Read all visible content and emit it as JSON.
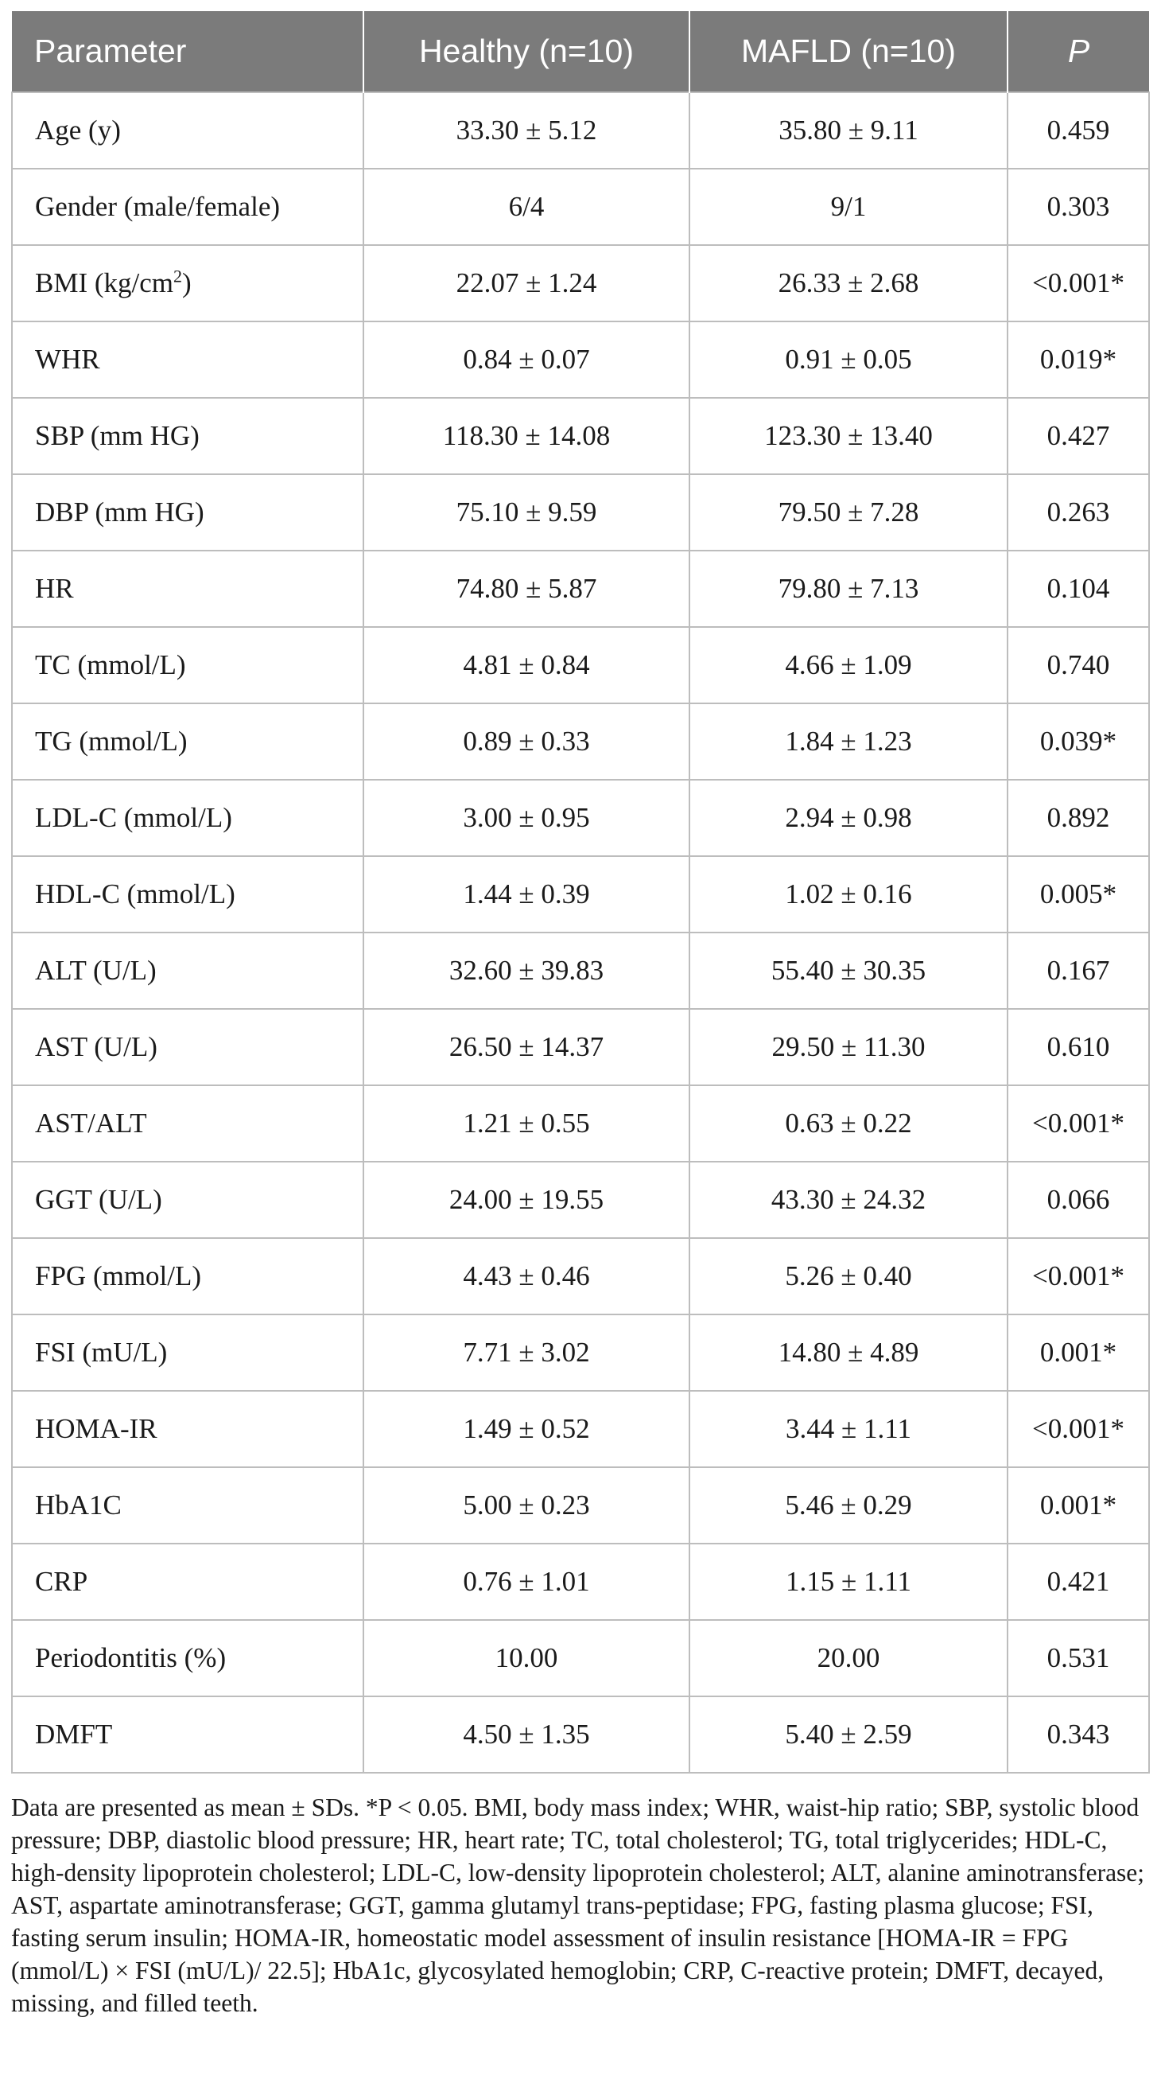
{
  "table": {
    "headers": [
      "Parameter",
      "Healthy (n=10)",
      "MAFLD (n=10)",
      "P"
    ],
    "rows": [
      {
        "parameter": "Age (y)",
        "healthy": "33.30 ± 5.12",
        "mafld": "35.80 ± 9.11",
        "p": "0.459"
      },
      {
        "parameter": "Gender (male/female)",
        "healthy": "6/4",
        "mafld": "9/1",
        "p": "0.303"
      },
      {
        "parameter": "BMI (kg/cm",
        "parameter_sup": "2",
        "parameter_tail": ")",
        "healthy": "22.07 ± 1.24",
        "mafld": "26.33 ± 2.68",
        "p": "<0.001*"
      },
      {
        "parameter": "WHR",
        "healthy": "0.84 ± 0.07",
        "mafld": "0.91 ± 0.05",
        "p": "0.019*"
      },
      {
        "parameter": "SBP (mm HG)",
        "healthy": "118.30 ± 14.08",
        "mafld": "123.30 ± 13.40",
        "p": "0.427"
      },
      {
        "parameter": "DBP (mm HG)",
        "healthy": "75.10 ± 9.59",
        "mafld": "79.50 ± 7.28",
        "p": "0.263"
      },
      {
        "parameter": "HR",
        "healthy": "74.80 ± 5.87",
        "mafld": "79.80 ± 7.13",
        "p": "0.104"
      },
      {
        "parameter": "TC (mmol/L)",
        "healthy": "4.81 ± 0.84",
        "mafld": "4.66 ± 1.09",
        "p": "0.740"
      },
      {
        "parameter": "TG (mmol/L)",
        "healthy": "0.89 ± 0.33",
        "mafld": "1.84 ± 1.23",
        "p": "0.039*"
      },
      {
        "parameter": "LDL-C (mmol/L)",
        "healthy": "3.00 ± 0.95",
        "mafld": "2.94 ± 0.98",
        "p": "0.892"
      },
      {
        "parameter": "HDL-C (mmol/L)",
        "healthy": "1.44 ± 0.39",
        "mafld": "1.02 ± 0.16",
        "p": "0.005*"
      },
      {
        "parameter": "ALT (U/L)",
        "healthy": "32.60 ± 39.83",
        "mafld": "55.40 ± 30.35",
        "p": "0.167"
      },
      {
        "parameter": "AST (U/L)",
        "healthy": "26.50 ± 14.37",
        "mafld": "29.50 ± 11.30",
        "p": "0.610"
      },
      {
        "parameter": "AST/ALT",
        "healthy": "1.21 ± 0.55",
        "mafld": "0.63 ± 0.22",
        "p": "<0.001*"
      },
      {
        "parameter": "GGT (U/L)",
        "healthy": "24.00 ± 19.55",
        "mafld": "43.30 ± 24.32",
        "p": "0.066"
      },
      {
        "parameter": "FPG (mmol/L)",
        "healthy": "4.43 ± 0.46",
        "mafld": "5.26 ± 0.40",
        "p": "<0.001*"
      },
      {
        "parameter": "FSI (mU/L)",
        "healthy": "7.71 ± 3.02",
        "mafld": "14.80 ± 4.89",
        "p": "0.001*"
      },
      {
        "parameter": "HOMA-IR",
        "healthy": "1.49 ± 0.52",
        "mafld": "3.44 ± 1.11",
        "p": "<0.001*"
      },
      {
        "parameter": "HbA1C",
        "healthy": "5.00 ± 0.23",
        "mafld": "5.46 ± 0.29",
        "p": "0.001*"
      },
      {
        "parameter": "CRP",
        "healthy": "0.76 ± 1.01",
        "mafld": "1.15 ± 1.11",
        "p": "0.421"
      },
      {
        "parameter": "Periodontitis (%)",
        "healthy": "10.00",
        "mafld": "20.00",
        "p": "0.531"
      },
      {
        "parameter": "DMFT",
        "healthy": "4.50 ± 1.35",
        "mafld": "5.40 ± 2.59",
        "p": "0.343"
      }
    ]
  },
  "footnote": "Data are presented as mean ± SDs. *P < 0.05. BMI, body mass index; WHR, waist-hip ratio; SBP, systolic blood pressure; DBP, diastolic blood pressure; HR, heart rate; TC, total cholesterol; TG, total triglycerides; HDL-C, high-density lipoprotein cholesterol; LDL-C, low-density lipoprotein cholesterol; ALT, alanine aminotransferase; AST, aspartate aminotransferase; GGT, gamma glutamyl trans-peptidase; FPG, fasting plasma glucose; FSI, fasting serum insulin; HOMA-IR, homeostatic model assessment of insulin resistance [HOMA-IR = FPG (mmol/L) × FSI (mU/L)/ 22.5]; HbA1c, glycosylated hemoglobin; CRP, C-reactive protein; DMFT, decayed, missing, and filled teeth.",
  "colors": {
    "header_bg": "#7b7b7b",
    "header_text": "#ffffff",
    "grid": "#bdbdbd",
    "text": "#1a1a1a"
  }
}
